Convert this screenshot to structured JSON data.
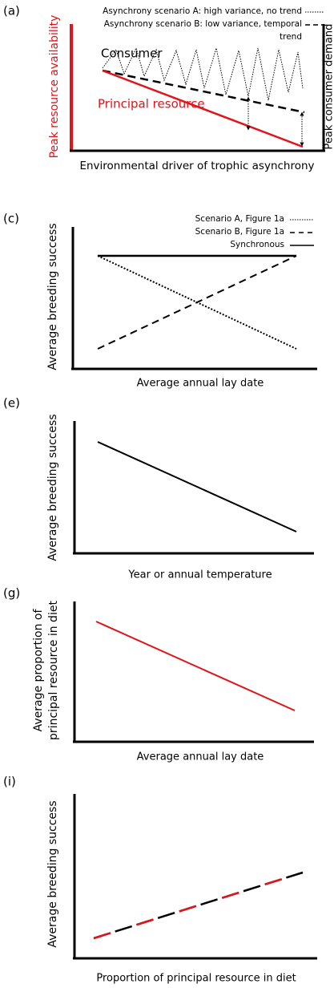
{
  "panels": [
    {
      "label": "(a)",
      "legend": [
        {
          "lines": [
            "Asynchrony scenario A: high variance, no trend"
          ]
        },
        {
          "lines": [
            "Asynchrony scenario B: low variance, temporal",
            "trend"
          ]
        }
      ],
      "y_axis_label": "Peak resource availability",
      "y2_axis_label": "Peak consumer demand",
      "x_axis_label": "Environmental driver of trophic asynchrony",
      "annotations": [
        "Consumer",
        "Principal resource"
      ]
    },
    {
      "label": "(c)",
      "legend": [
        {
          "lines": [
            "Scenario A, Figure 1a"
          ]
        },
        {
          "lines": [
            "Scenario B, Figure 1a"
          ]
        },
        {
          "lines": [
            "Synchronous"
          ]
        }
      ],
      "y_axis_label": "Average breeding success",
      "x_axis_label": "Average annual lay date"
    },
    {
      "label": "(e)",
      "y_axis_label": "Average breeding success",
      "x_axis_label": "Year or annual temperature"
    },
    {
      "label": "(g)",
      "y_axis_label_lines": [
        "Average proportion of",
        "principal resource in diet"
      ],
      "x_axis_label": "Average annual lay date"
    },
    {
      "label": "(i)",
      "y_axis_label": "Average breeding success",
      "x_axis_label": "Proportion of principal resource in diet"
    }
  ]
}
